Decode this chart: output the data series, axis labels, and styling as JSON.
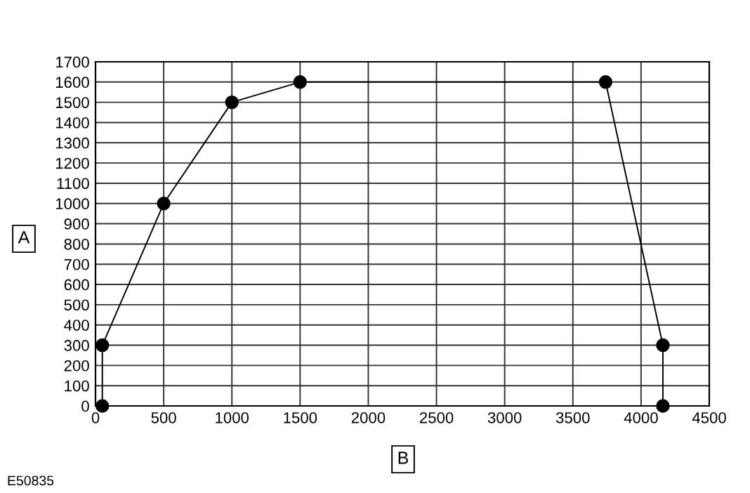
{
  "chart_data": {
    "type": "line",
    "xlabel": "B",
    "ylabel": "A",
    "annotations": [
      "E50835"
    ],
    "x": [
      50,
      50,
      500,
      1000,
      1500,
      3740,
      4160,
      4160
    ],
    "series": [
      {
        "color": "#000000",
        "values": [
          0,
          300,
          1000,
          1500,
          1600,
          1600,
          300,
          0
        ]
      }
    ],
    "xlim": [
      0,
      4500
    ],
    "xticks": [
      0,
      500,
      1000,
      1500,
      2000,
      2500,
      3000,
      3500,
      4000,
      4500
    ],
    "ylim": [
      0,
      1700
    ],
    "yticks": [
      0,
      100,
      200,
      300,
      400,
      500,
      600,
      700,
      800,
      900,
      1000,
      1100,
      1200,
      1300,
      1400,
      1500,
      1600,
      1700
    ],
    "grid": true,
    "marker": "circle",
    "line_style": "solid"
  }
}
